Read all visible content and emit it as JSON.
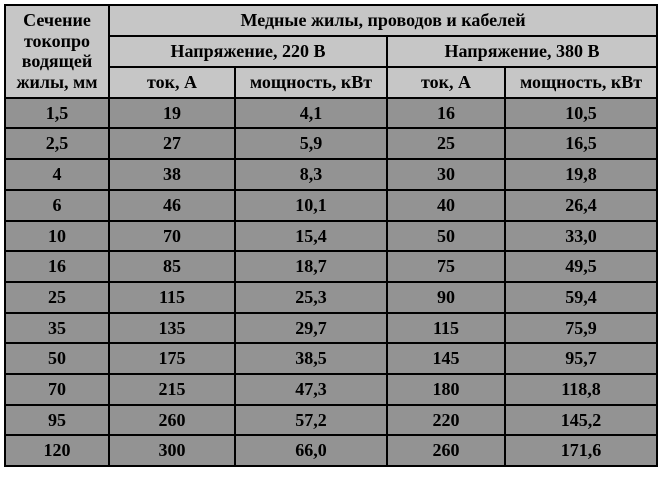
{
  "table": {
    "left_header": "Сечение токопро водящей жилы, мм",
    "top_header": "Медные жилы, проводов и кабелей",
    "group_220": "Напряжение, 220 В",
    "group_380": "Напряжение, 380 В",
    "col_current": "ток, А",
    "col_power": "мощность, кВт",
    "columns": [
      "section",
      "i220",
      "p220",
      "i380",
      "p380"
    ],
    "rows": [
      {
        "section": "1,5",
        "i220": "19",
        "p220": "4,1",
        "i380": "16",
        "p380": "10,5"
      },
      {
        "section": "2,5",
        "i220": "27",
        "p220": "5,9",
        "i380": "25",
        "p380": "16,5"
      },
      {
        "section": "4",
        "i220": "38",
        "p220": "8,3",
        "i380": "30",
        "p380": "19,8"
      },
      {
        "section": "6",
        "i220": "46",
        "p220": "10,1",
        "i380": "40",
        "p380": "26,4"
      },
      {
        "section": "10",
        "i220": "70",
        "p220": "15,4",
        "i380": "50",
        "p380": "33,0"
      },
      {
        "section": "16",
        "i220": "85",
        "p220": "18,7",
        "i380": "75",
        "p380": "49,5"
      },
      {
        "section": "25",
        "i220": "115",
        "p220": "25,3",
        "i380": "90",
        "p380": "59,4"
      },
      {
        "section": "35",
        "i220": "135",
        "p220": "29,7",
        "i380": "115",
        "p380": "75,9"
      },
      {
        "section": "50",
        "i220": "175",
        "p220": "38,5",
        "i380": "145",
        "p380": "95,7"
      },
      {
        "section": "70",
        "i220": "215",
        "p220": "47,3",
        "i380": "180",
        "p380": "118,8"
      },
      {
        "section": "95",
        "i220": "260",
        "p220": "57,2",
        "i380": "220",
        "p380": "145,2"
      },
      {
        "section": "120",
        "i220": "300",
        "p220": "66,0",
        "i380": "260",
        "p380": "171,6"
      }
    ],
    "header_bg": "#c6c6c6",
    "cell_bg": "#939393",
    "border_color": "#000000",
    "font_family": "Times New Roman",
    "font_size_pt": 14
  }
}
